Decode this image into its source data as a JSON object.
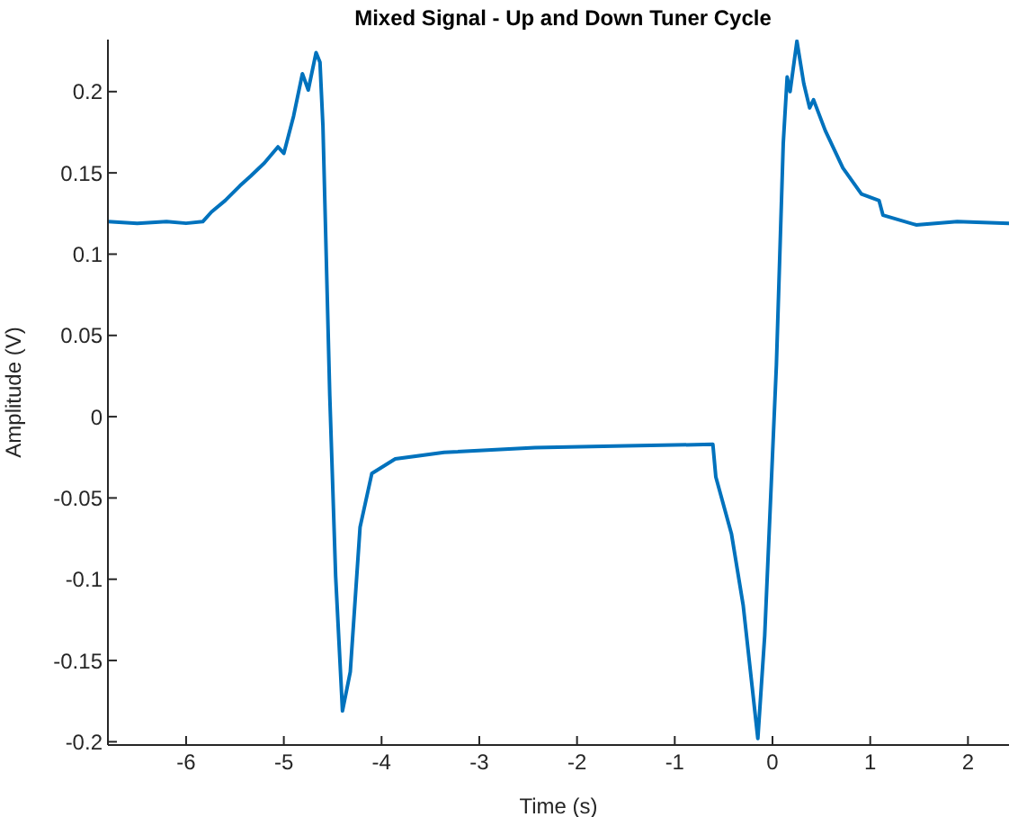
{
  "chart_data": {
    "type": "line",
    "title": "Mixed Signal - Up and Down Tuner Cycle",
    "xlabel": "Time (s)",
    "ylabel": "Amplitude (V)",
    "xlim": [
      -6.8,
      2.42
    ],
    "xticks": [
      -6,
      -5,
      -4,
      -3,
      -2,
      -1,
      0,
      1,
      2
    ],
    "ylim": [
      -0.202,
      0.232
    ],
    "yticks": [
      -0.2,
      -0.15,
      -0.1,
      -0.05,
      0,
      0.05,
      0.1,
      0.15,
      0.2
    ],
    "grid": false,
    "legend": false,
    "marker": "none",
    "line_style": "solid",
    "series": [
      {
        "color": "#0072bd",
        "x": [
          -6.8,
          -6.5,
          -6.2,
          -6.0,
          -5.83,
          -5.74,
          -5.6,
          -5.45,
          -5.34,
          -5.2,
          -5.06,
          -5.0,
          -4.9,
          -4.81,
          -4.75,
          -4.67,
          -4.63,
          -4.6,
          -4.53,
          -4.47,
          -4.4,
          -4.32,
          -4.22,
          -4.1,
          -3.86,
          -3.36,
          -2.43,
          -1.5,
          -0.61,
          -0.58,
          -0.42,
          -0.3,
          -0.15,
          -0.08,
          0.04,
          0.11,
          0.15,
          0.18,
          0.25,
          0.32,
          0.38,
          0.42,
          0.54,
          0.72,
          0.91,
          1.09,
          1.13,
          1.47,
          1.89,
          2.42
        ],
        "values": [
          0.12,
          0.119,
          0.12,
          0.119,
          0.12,
          0.126,
          0.133,
          0.142,
          0.148,
          0.156,
          0.166,
          0.162,
          0.185,
          0.211,
          0.201,
          0.224,
          0.218,
          0.179,
          0.013,
          -0.098,
          -0.181,
          -0.157,
          -0.068,
          -0.035,
          -0.026,
          -0.022,
          -0.019,
          -0.018,
          -0.017,
          -0.037,
          -0.072,
          -0.116,
          -0.198,
          -0.135,
          0.032,
          0.168,
          0.209,
          0.2,
          0.231,
          0.205,
          0.19,
          0.195,
          0.176,
          0.153,
          0.137,
          0.133,
          0.124,
          0.118,
          0.12,
          0.119
        ]
      }
    ]
  }
}
